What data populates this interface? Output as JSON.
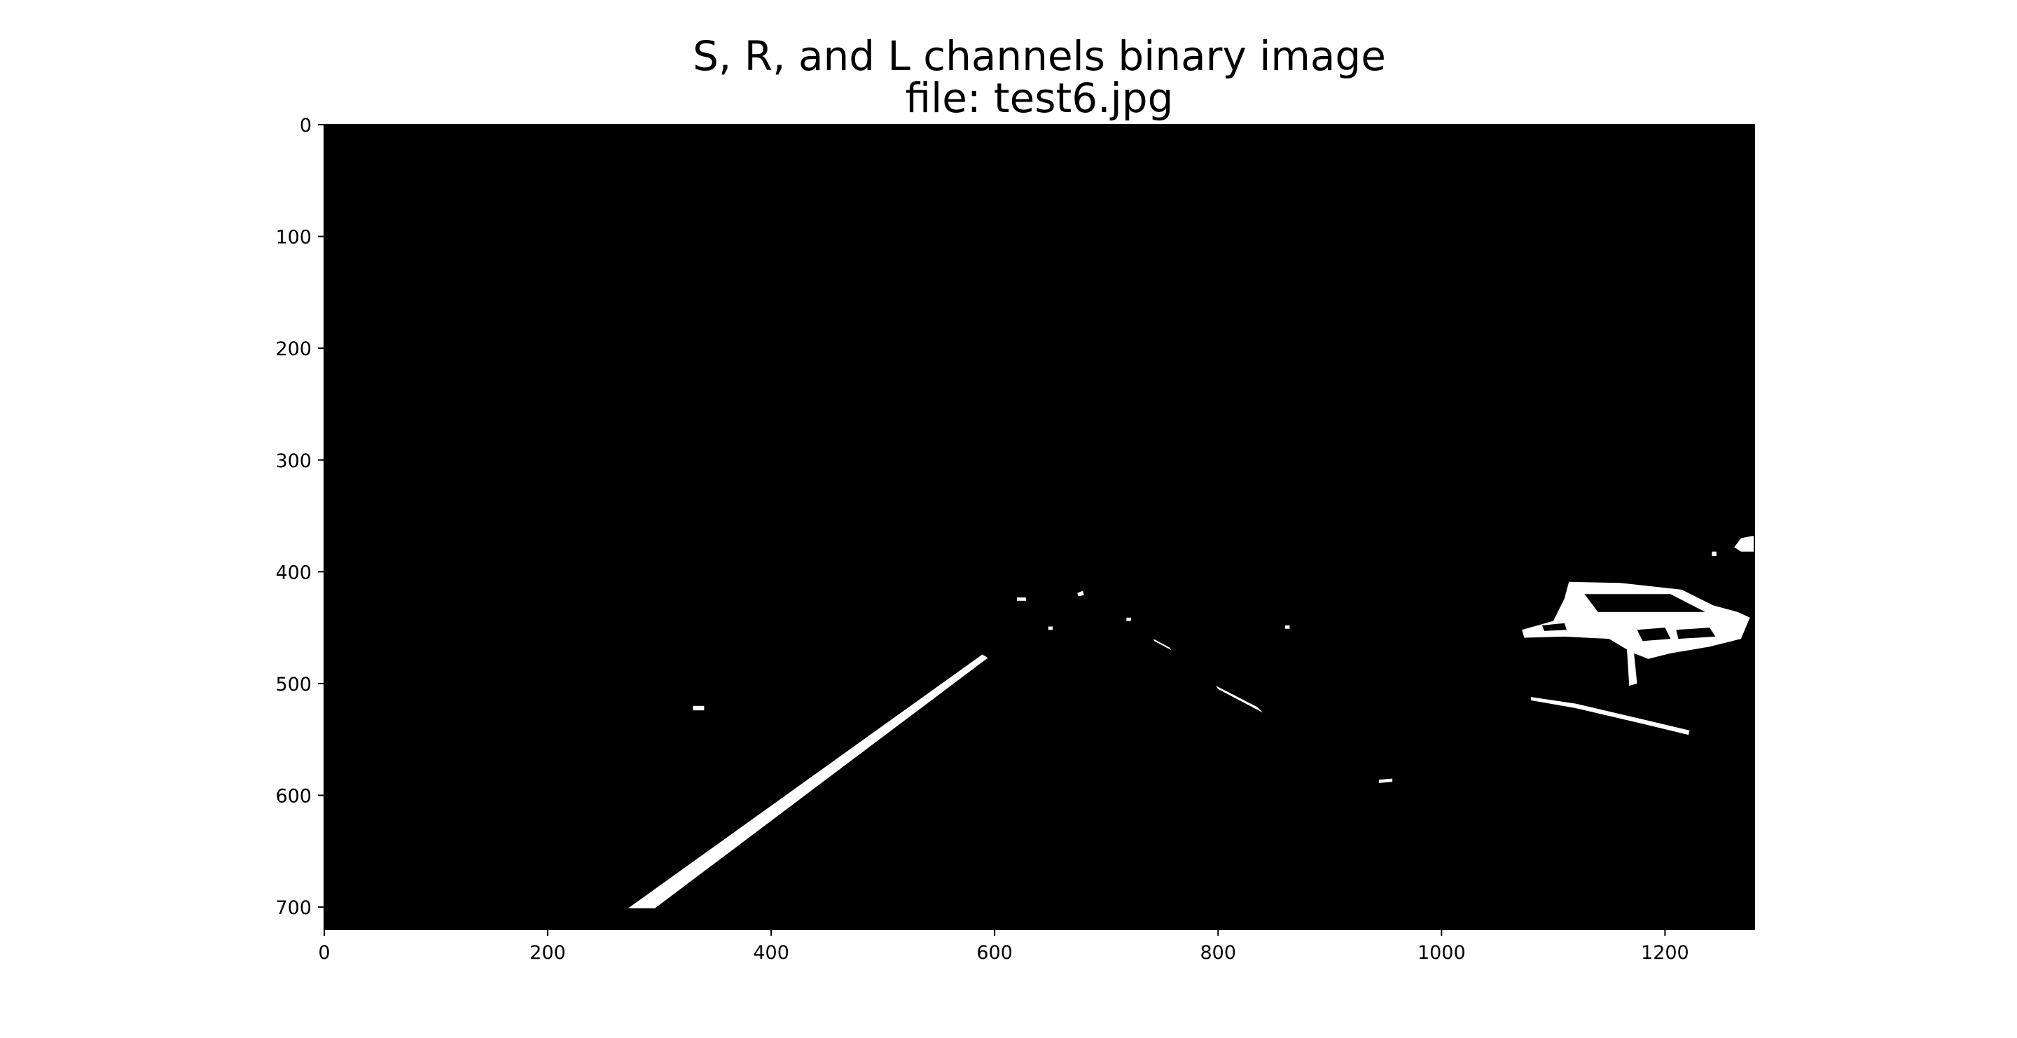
{
  "figure": {
    "title_line1": "S, R, and L channels binary image",
    "title_line2": "file: test6.jpg"
  },
  "colors": {
    "background": "#ffffff",
    "image_background": "#000000",
    "foreground_pixels": "#ffffff",
    "axis": "#000000"
  },
  "chart_data": {
    "type": "image",
    "title": "S, R, and L channels binary image\nfile: test6.jpg",
    "xlim": [
      0,
      1280
    ],
    "ylim": [
      720,
      0
    ],
    "x_ticks": [
      0,
      200,
      400,
      600,
      800,
      1000,
      1200
    ],
    "y_ticks": [
      0,
      100,
      200,
      300,
      400,
      500,
      600,
      700
    ],
    "binary_regions": [
      {
        "name": "left-lane-line",
        "polygon": [
          [
            272,
            701
          ],
          [
            296,
            701
          ],
          [
            594,
            477
          ],
          [
            589,
            474
          ]
        ]
      },
      {
        "name": "right-lane-dash",
        "polygon": [
          [
            798,
            502
          ],
          [
            835,
            521
          ],
          [
            840,
            526
          ],
          [
            800,
            505
          ]
        ]
      },
      {
        "name": "right-lane-far-dash",
        "polygon": [
          [
            742,
            460
          ],
          [
            757,
            468
          ],
          [
            758,
            470
          ],
          [
            743,
            462
          ]
        ]
      },
      {
        "name": "vehicle-right",
        "polygon": [
          [
            1072,
            452
          ],
          [
            1100,
            444
          ],
          [
            1110,
            424
          ],
          [
            1114,
            409
          ],
          [
            1160,
            410
          ],
          [
            1215,
            416
          ],
          [
            1243,
            430
          ],
          [
            1265,
            436
          ],
          [
            1276,
            441
          ],
          [
            1268,
            460
          ],
          [
            1240,
            467
          ],
          [
            1205,
            473
          ],
          [
            1185,
            478
          ],
          [
            1170,
            472
          ],
          [
            1150,
            460
          ],
          [
            1110,
            458
          ],
          [
            1074,
            459
          ]
        ]
      },
      {
        "name": "vehicle-right-wheel",
        "polygon": [
          [
            1166,
            470
          ],
          [
            1172,
            470
          ],
          [
            1175,
            500
          ],
          [
            1168,
            502
          ]
        ]
      },
      {
        "name": "road-edge-right",
        "polygon": [
          [
            1080,
            512
          ],
          [
            1120,
            518
          ],
          [
            1180,
            532
          ],
          [
            1222,
            542
          ],
          [
            1221,
            546
          ],
          [
            1180,
            536
          ],
          [
            1120,
            522
          ],
          [
            1080,
            515
          ]
        ]
      },
      {
        "name": "far-right-edge",
        "polygon": [
          [
            1262,
            378
          ],
          [
            1268,
            370
          ],
          [
            1278,
            368
          ],
          [
            1280,
            368
          ],
          [
            1280,
            382
          ],
          [
            1268,
            382
          ]
        ]
      },
      {
        "name": "speck-1",
        "polygon": [
          [
            330,
            520
          ],
          [
            340,
            520
          ],
          [
            340,
            524
          ],
          [
            330,
            524
          ]
        ]
      },
      {
        "name": "speck-2",
        "polygon": [
          [
            620,
            423
          ],
          [
            628,
            423
          ],
          [
            628,
            426
          ],
          [
            620,
            426
          ]
        ]
      },
      {
        "name": "speck-3",
        "polygon": [
          [
            674,
            419
          ],
          [
            679,
            417
          ],
          [
            680,
            421
          ],
          [
            675,
            422
          ]
        ]
      },
      {
        "name": "speck-4",
        "polygon": [
          [
            944,
            586
          ],
          [
            956,
            585
          ],
          [
            956,
            588
          ],
          [
            944,
            589
          ]
        ]
      },
      {
        "name": "speck-5",
        "polygon": [
          [
            648,
            449
          ],
          [
            652,
            449
          ],
          [
            652,
            452
          ],
          [
            648,
            452
          ]
        ]
      },
      {
        "name": "speck-6",
        "polygon": [
          [
            718,
            441
          ],
          [
            722,
            441
          ],
          [
            722,
            444
          ],
          [
            718,
            444
          ]
        ]
      },
      {
        "name": "speck-7",
        "polygon": [
          [
            860,
            448
          ],
          [
            864,
            448
          ],
          [
            864,
            451
          ],
          [
            860,
            451
          ]
        ]
      },
      {
        "name": "speck-8",
        "polygon": [
          [
            1242,
            382
          ],
          [
            1246,
            382
          ],
          [
            1246,
            386
          ],
          [
            1242,
            386
          ]
        ]
      }
    ]
  }
}
